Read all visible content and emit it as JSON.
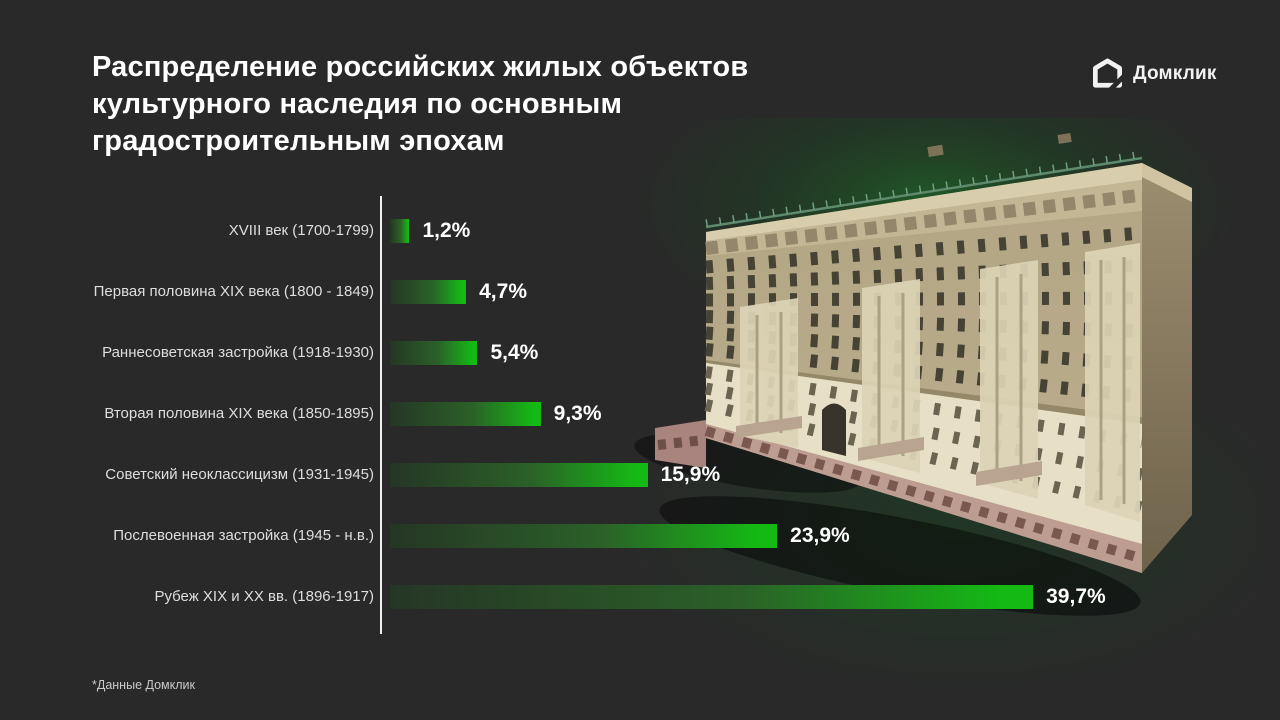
{
  "page": {
    "background": "#292929"
  },
  "header": {
    "title": "Распределение российских жилых объектов культурного наследия по основным градостроительным эпохам",
    "title_lines": [
      "Распределение российских жилых объектов",
      "культурного наследия по основным",
      "градостроительным эпохам"
    ]
  },
  "logo": {
    "name": "Домклик"
  },
  "chart_data": {
    "type": "bar",
    "orientation": "horizontal",
    "title": "Распределение российских жилых объектов культурного наследия по основным градостроительным эпохам",
    "categories": [
      "XVIII век (1700-1799)",
      "Первая половина XIX века (1800 - 1849)",
      "Раннесоветская застройка (1918-1930)",
      "Вторая половина XIX века (1850-1895)",
      "Советский неоклассицизм (1931-1945)",
      "Послевоенная застройка (1945 - н.в.)",
      "Рубеж XIX и XX вв. (1896-1917)"
    ],
    "values": [
      1.2,
      4.7,
      5.4,
      9.3,
      15.9,
      23.9,
      39.7
    ],
    "value_labels": [
      "1,2%",
      "4,7%",
      "5,4%",
      "9,3%",
      "15,9%",
      "23,9%",
      "39,7%"
    ],
    "xlim": [
      0,
      40
    ],
    "grid": false,
    "legend": false,
    "axis_color": "#f0f0f0",
    "bar_gradient": [
      "#253625",
      "#2b6128",
      "#14b914"
    ],
    "label_color": "#dedede",
    "value_color": "#ffffff"
  },
  "footnote": "*Данные Домклик"
}
